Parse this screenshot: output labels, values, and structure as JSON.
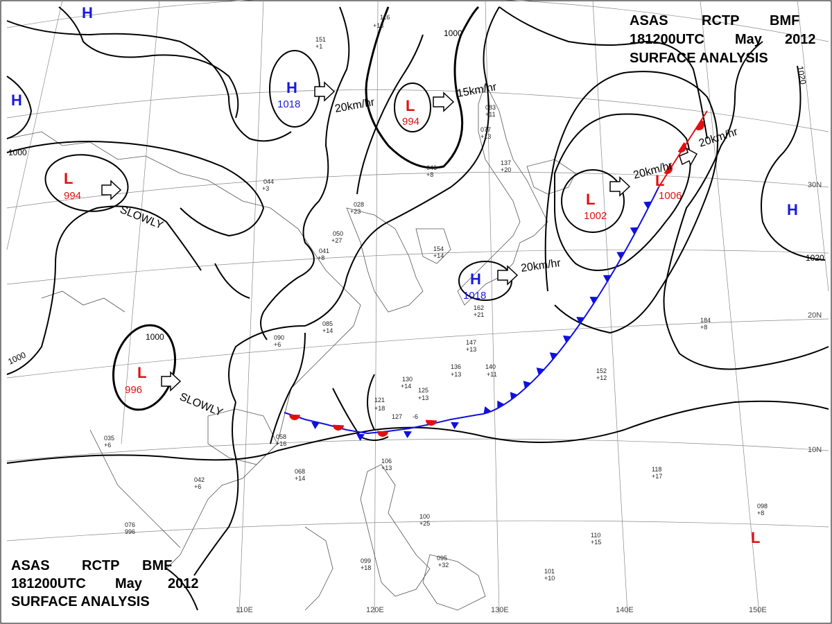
{
  "header_top": {
    "line1": [
      "ASAS",
      "RCTP",
      "BMF"
    ],
    "line2": [
      "181200UTC",
      "May",
      "2012"
    ],
    "line3": "SURFACE ANALYSIS"
  },
  "header_bottom": {
    "line1": [
      "ASAS",
      "RCTP",
      "BMF"
    ],
    "line2": [
      "181200UTC",
      "May",
      "2012"
    ],
    "line3": "SURFACE ANALYSIS"
  },
  "longitude_labels": [
    "110E",
    "120E",
    "130E",
    "140E",
    "150E"
  ],
  "latitude_labels": [
    "30N",
    "20N",
    "10N"
  ],
  "isobar_labels": [
    "1000",
    "1000",
    "1000",
    "1000",
    "1020",
    "1020"
  ],
  "pressure_centers": [
    {
      "type": "H",
      "value": "1018"
    },
    {
      "type": "H",
      "value": "1018"
    },
    {
      "type": "L",
      "value": "994"
    },
    {
      "type": "L",
      "value": "994"
    },
    {
      "type": "L",
      "value": "996"
    },
    {
      "type": "L",
      "value": "1002"
    },
    {
      "type": "L",
      "value": "1006"
    },
    {
      "type": "H",
      "value": ""
    },
    {
      "type": "H",
      "value": ""
    },
    {
      "type": "H",
      "value": ""
    },
    {
      "type": "L",
      "value": ""
    }
  ],
  "motion_labels": [
    "20km/hr",
    "15km/hr",
    "SLOWLY",
    "SLOWLY",
    "20km/hr",
    "20km/hr",
    "20km/hr"
  ],
  "colors": {
    "high": "#1a1adf",
    "low": "#e01010",
    "cold_front": "#1010e0",
    "warm_front": "#e01010",
    "isobar": "#000000",
    "grid": "#888888",
    "coast": "#555555"
  },
  "stations": [
    "116",
    "+18",
    "151",
    "+1",
    "044",
    "+3",
    "028",
    "+23",
    "050",
    "+27",
    "041",
    "+8",
    "085",
    "+14",
    "090",
    "+6",
    "058",
    "+16",
    "068",
    "+14",
    "130",
    "+14",
    "125",
    "+13",
    "121",
    "+18",
    "127",
    "-6",
    "136",
    "+13",
    "140",
    "+11",
    "147",
    "+13",
    "152",
    "+12",
    "184",
    "+8",
    "118",
    "+17",
    "106",
    "+13",
    "100",
    "+25",
    "099",
    "+18",
    "095",
    "+32",
    "101",
    "+10",
    "110",
    "+15",
    "098",
    "+8",
    "083",
    "+11",
    "077",
    "+13",
    "137",
    "+20",
    "046",
    "+8",
    "154",
    "+14",
    "162",
    "+21",
    "035",
    "+6",
    "042",
    "+6",
    "076",
    "996"
  ]
}
